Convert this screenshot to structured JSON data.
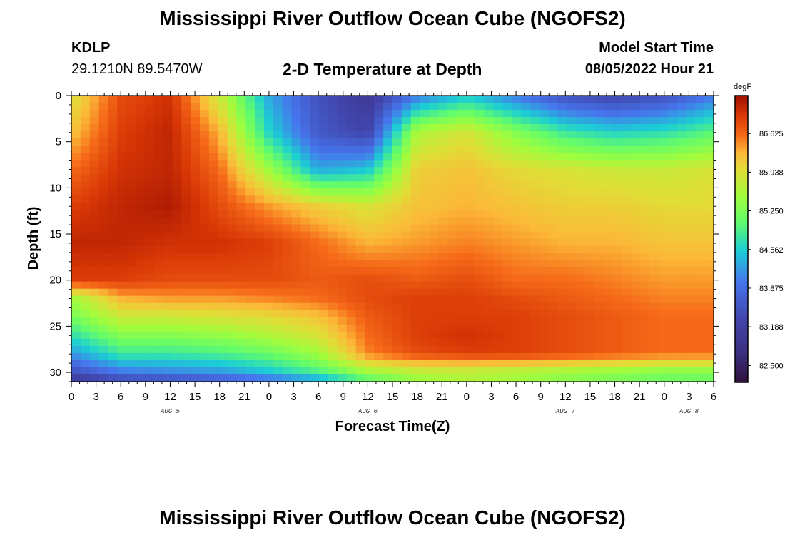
{
  "header": {
    "title": "Mississippi River Outflow Ocean Cube (NGOFS2)",
    "station_id": "KDLP",
    "station_coords": "29.1210N  89.5470W",
    "subtitle": "2-D Temperature at Depth",
    "model_start_label": "Model Start Time",
    "model_start_value": "08/05/2022 Hour 21"
  },
  "footer": {
    "title": "Mississippi River Outflow Ocean Cube (NGOFS2)"
  },
  "chart_data": {
    "type": "heatmap",
    "title": "2-D Temperature at Depth",
    "xlabel": "Forecast Time(Z)",
    "ylabel": "Depth (ft)",
    "x_ticks": [
      "0",
      "3",
      "6",
      "9",
      "12",
      "15",
      "18",
      "21",
      "0",
      "3",
      "6",
      "9",
      "12",
      "15",
      "18",
      "21",
      "0",
      "3",
      "6",
      "9",
      "12",
      "15",
      "18",
      "21",
      "0",
      "3",
      "6"
    ],
    "x_range_hours": [
      0,
      78
    ],
    "date_labels": [
      {
        "label": "AUG 5",
        "hour": 12
      },
      {
        "label": "AUG 6",
        "hour": 36
      },
      {
        "label": "AUG 7",
        "hour": 60
      },
      {
        "label": "AUG 8",
        "hour": 75
      }
    ],
    "y_ticks": [
      "0",
      "5",
      "10",
      "15",
      "20",
      "25",
      "30"
    ],
    "y_range_ft": [
      0,
      31
    ],
    "colorbar": {
      "unit": "degF",
      "min": 82.2,
      "max": 87.3,
      "ticks": [
        "86.625",
        "85.938",
        "85.250",
        "84.562",
        "83.875",
        "83.188",
        "82.500"
      ]
    },
    "grid": {
      "time_hours": [
        0,
        6,
        12,
        18,
        24,
        30,
        36,
        42,
        48,
        54,
        60,
        66,
        72,
        78
      ],
      "depth_ft": [
        0,
        4,
        8,
        12,
        16,
        20,
        22,
        24,
        26,
        28,
        30,
        31
      ],
      "values_degF": [
        [
          85.9,
          86.8,
          87.0,
          85.8,
          84.3,
          83.5,
          83.0,
          84.0,
          84.5,
          84.0,
          83.5,
          83.3,
          83.5,
          84.0
        ],
        [
          86.2,
          86.9,
          87.1,
          86.3,
          84.6,
          83.6,
          83.3,
          85.6,
          85.9,
          85.3,
          84.8,
          84.6,
          84.7,
          85.0
        ],
        [
          86.6,
          87.0,
          87.1,
          86.6,
          85.5,
          84.3,
          84.5,
          86.1,
          86.2,
          86.0,
          85.9,
          85.8,
          85.8,
          85.9
        ],
        [
          86.9,
          87.1,
          87.2,
          86.8,
          86.4,
          86.1,
          85.9,
          86.2,
          86.3,
          86.2,
          86.1,
          86.1,
          86.0,
          86.0
        ],
        [
          87.1,
          87.1,
          87.0,
          87.0,
          86.9,
          86.6,
          86.3,
          86.4,
          86.5,
          86.4,
          86.3,
          86.3,
          86.2,
          86.2
        ],
        [
          86.9,
          86.9,
          86.8,
          86.8,
          86.8,
          86.7,
          86.8,
          86.7,
          86.8,
          86.6,
          86.6,
          86.5,
          86.4,
          86.4
        ],
        [
          85.5,
          86.3,
          86.4,
          86.4,
          86.5,
          86.6,
          86.8,
          86.9,
          86.9,
          86.8,
          86.7,
          86.6,
          86.5,
          86.5
        ],
        [
          85.2,
          85.8,
          85.8,
          85.9,
          86.0,
          86.2,
          86.7,
          86.9,
          86.9,
          86.9,
          86.8,
          86.7,
          86.6,
          86.6
        ],
        [
          84.7,
          85.3,
          85.3,
          85.4,
          85.6,
          85.9,
          86.6,
          86.9,
          87.0,
          86.9,
          86.8,
          86.7,
          86.6,
          86.6
        ],
        [
          84.2,
          84.8,
          84.8,
          84.9,
          85.1,
          85.5,
          86.5,
          86.8,
          86.9,
          86.9,
          86.8,
          86.7,
          86.6,
          86.6
        ],
        [
          83.5,
          84.0,
          84.1,
          84.2,
          84.5,
          84.9,
          85.5,
          85.7,
          85.7,
          85.6,
          85.5,
          85.4,
          85.3,
          85.3
        ],
        [
          83.0,
          83.3,
          83.4,
          83.6,
          83.8,
          84.2,
          84.9,
          85.4,
          85.6,
          85.5,
          85.3,
          85.2,
          85.1,
          85.1
        ]
      ]
    }
  }
}
